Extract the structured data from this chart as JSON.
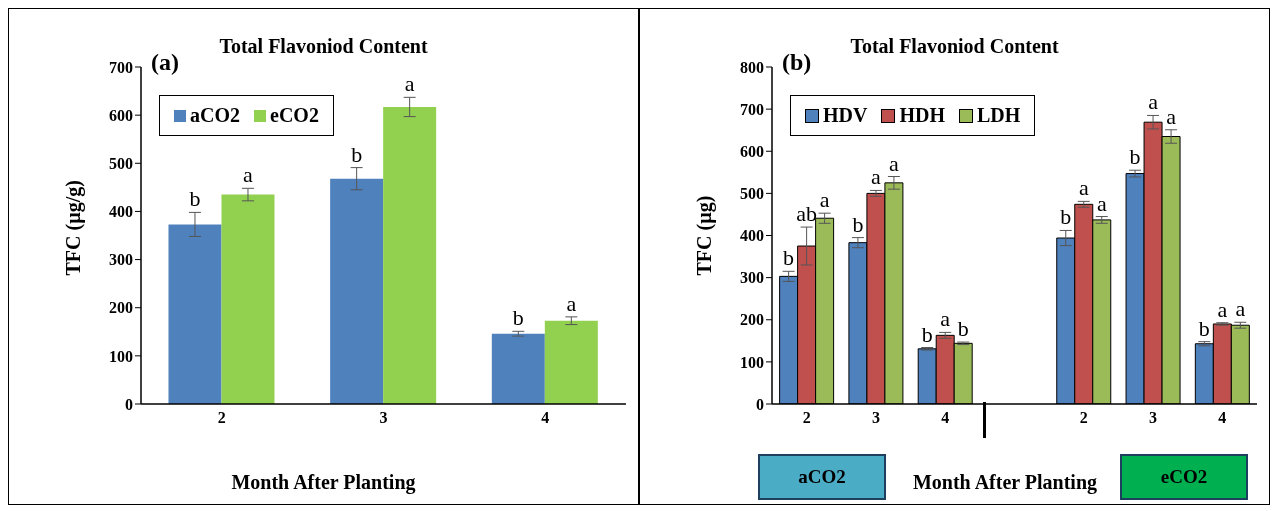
{
  "chart_data": [
    {
      "type": "bar",
      "title": "Total Flavoniod Content",
      "xlabel": "Month After Planting",
      "ylabel": "TFC (µg/g)",
      "categories": [
        "2",
        "3",
        "4"
      ],
      "series": [
        {
          "name": "aCO2",
          "color": "#4f81bd",
          "values": [
            373,
            468,
            146
          ],
          "errors": [
            25,
            23,
            5
          ],
          "value_labels": [
            "b",
            "b",
            "b"
          ]
        },
        {
          "name": "eCO2",
          "color": "#92d050",
          "values": [
            435,
            617,
            173
          ],
          "errors": [
            13,
            20,
            8
          ],
          "value_labels": [
            "a",
            "a",
            "a"
          ]
        }
      ],
      "ylim": [
        0,
        700
      ],
      "yticks": [
        0,
        100,
        200,
        300,
        400,
        500,
        600,
        700
      ],
      "grid": false,
      "legend": "top left",
      "annotations": [
        "(a)"
      ]
    },
    {
      "type": "bar",
      "title": "Total Flavoniod Content",
      "xlabel": "Month After Planting",
      "ylabel": "TFC (µg)",
      "categories": [
        "2",
        "3",
        "4",
        null,
        "2",
        "3",
        "4"
      ],
      "series": [
        {
          "name": "HDV",
          "color": "#4f81bd",
          "values": [
            303,
            383,
            131,
            null,
            394,
            547,
            143
          ],
          "errors": [
            12,
            12,
            3,
            null,
            18,
            8,
            5
          ],
          "value_labels": [
            "b",
            "b",
            "b",
            null,
            "b",
            "b",
            "b"
          ]
        },
        {
          "name": "HDH",
          "color": "#c0504d",
          "values": [
            375,
            500,
            163,
            null,
            474,
            669,
            190
          ],
          "errors": [
            45,
            7,
            7,
            null,
            7,
            16,
            3
          ],
          "value_labels": [
            "ab",
            "a",
            "a",
            null,
            "a",
            "a",
            "a"
          ]
        },
        {
          "name": "LDH",
          "color": "#9bbb59",
          "values": [
            441,
            525,
            144,
            null,
            437,
            635,
            187
          ],
          "errors": [
            12,
            15,
            3,
            null,
            8,
            16,
            7
          ],
          "value_labels": [
            "a",
            "a",
            "b",
            null,
            "a",
            "a",
            "a"
          ]
        }
      ],
      "ylim": [
        0,
        800
      ],
      "yticks": [
        0,
        100,
        200,
        300,
        400,
        500,
        600,
        700,
        800
      ],
      "grid": false,
      "legend": "top left",
      "annotations": [
        "(b)",
        "aCO2",
        "eCO2"
      ]
    }
  ]
}
